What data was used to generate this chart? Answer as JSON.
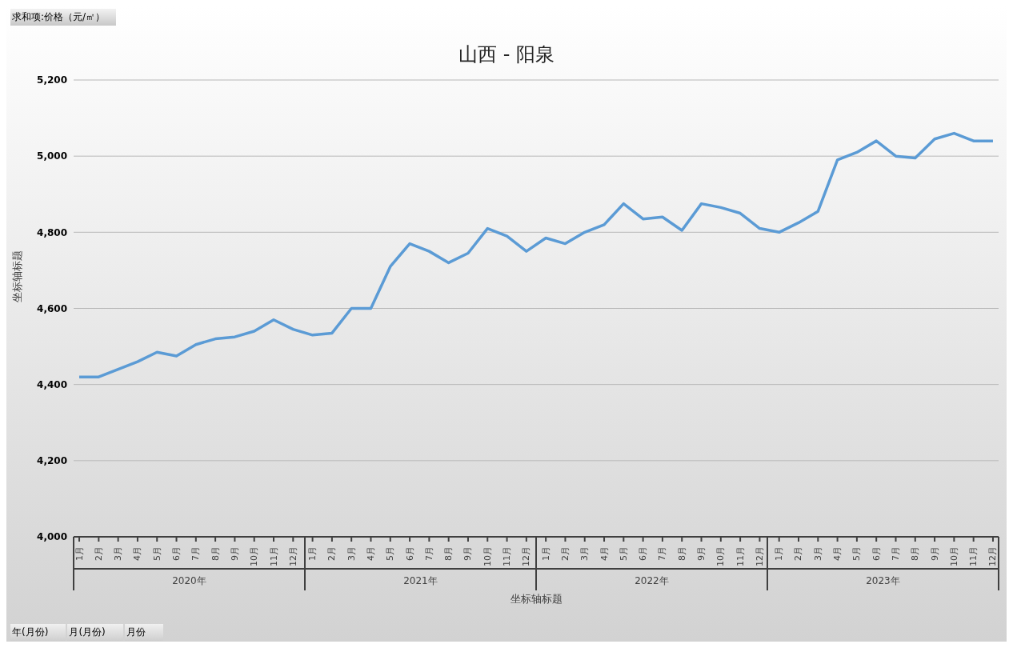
{
  "chart_data": {
    "type": "line",
    "title": "山西 - 阳泉",
    "xlabel": "坐标轴标题",
    "ylabel": "坐标轴标题",
    "categories": [
      "1月",
      "2月",
      "3月",
      "4月",
      "5月",
      "6月",
      "7月",
      "8月",
      "9月",
      "10月",
      "11月",
      "12月",
      "1月",
      "2月",
      "3月",
      "4月",
      "5月",
      "6月",
      "7月",
      "8月",
      "9月",
      "10月",
      "11月",
      "12月",
      "1月",
      "2月",
      "3月",
      "4月",
      "5月",
      "6月",
      "7月",
      "8月",
      "9月",
      "10月",
      "11月",
      "12月",
      "1月",
      "2月",
      "3月",
      "4月",
      "5月",
      "6月",
      "7月",
      "8月",
      "9月",
      "10月",
      "11月",
      "12月"
    ],
    "series": [
      {
        "color": "#5b9bd5",
        "values": [
          4420,
          4420,
          4440,
          4460,
          4485,
          4475,
          4505,
          4520,
          4525,
          4540,
          4570,
          4545,
          4530,
          4535,
          4600,
          4600,
          4710,
          4770,
          4750,
          4720,
          4745,
          4810,
          4790,
          4750,
          4785,
          4770,
          4800,
          4820,
          4875,
          4835,
          4840,
          4805,
          4875,
          4865,
          4850,
          4810,
          4800,
          4825,
          4855,
          4990,
          5010,
          5040,
          5000,
          4995,
          5045,
          5060,
          5040,
          5040
        ]
      }
    ],
    "ylim": [
      4000,
      5200
    ],
    "yticks": [
      {
        "value": 4000,
        "label": "4,000"
      },
      {
        "value": 4200,
        "label": "4,200"
      },
      {
        "value": 4400,
        "label": "4,400"
      },
      {
        "value": 4600,
        "label": "4,600"
      },
      {
        "value": 4800,
        "label": "4,800"
      },
      {
        "value": 5000,
        "label": "5,000"
      },
      {
        "value": 5200,
        "label": "5,200"
      }
    ],
    "grid": "y",
    "legend": false,
    "marker": "none",
    "line_style": "solid",
    "annotations": [
      "求和项:价格（元/㎡）",
      "2020年",
      "2021年",
      "2022年",
      "2023年",
      "年(月份)",
      "月(月份)",
      "月份"
    ]
  }
}
